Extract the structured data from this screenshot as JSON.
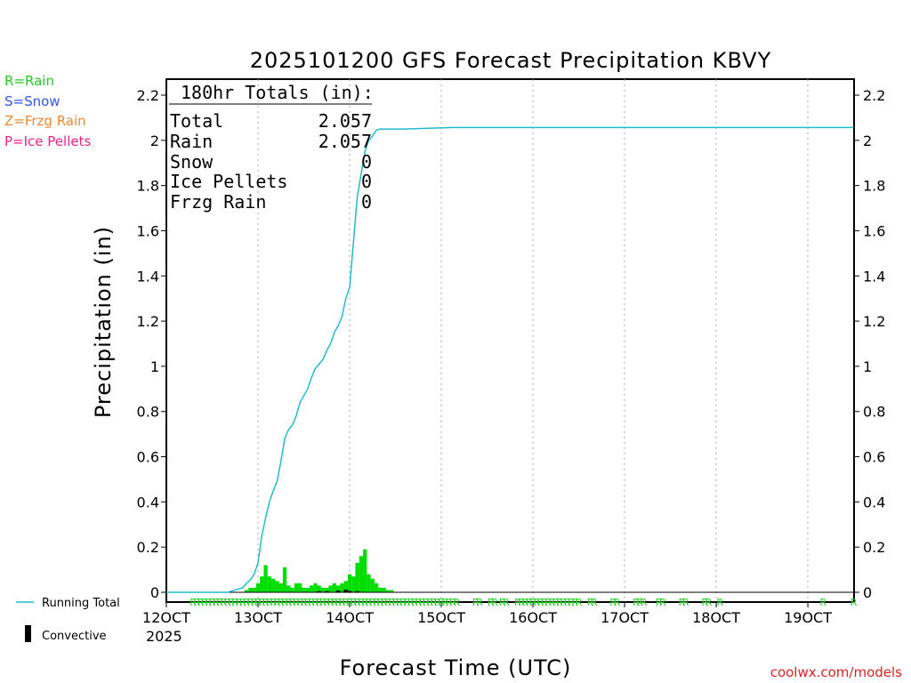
{
  "chart_data": {
    "type": "line",
    "title": "2025101200 GFS Forecast Precipitation KBVY",
    "xlabel": "Forecast Time (UTC)",
    "ylabel": "Precipitation (in)",
    "ylim": [
      0,
      2.25
    ],
    "yticks": [
      0,
      0.2,
      0.4,
      0.6,
      0.8,
      1,
      1.2,
      1.4,
      1.6,
      1.8,
      2,
      2.2
    ],
    "ytick_labels": [
      "0",
      "0.2",
      "0.4",
      "0.6",
      "0.8",
      "1",
      "1.2",
      "1.4",
      "1.6",
      "1.8",
      "2",
      "2.2"
    ],
    "xlim": [
      0,
      180
    ],
    "xticks": [
      0,
      24,
      48,
      72,
      96,
      120,
      144,
      168
    ],
    "xtick_labels": [
      "12OCT",
      "13OCT",
      "14OCT",
      "15OCT",
      "16OCT",
      "17OCT",
      "18OCT",
      "19OCT"
    ],
    "year_label": "2025",
    "legend_types": [
      {
        "label": "R=Rain",
        "color": "#22cc22"
      },
      {
        "label": "S=Snow",
        "color": "#3355ee"
      },
      {
        "label": "Z=Frzg Rain",
        "color": "#ee8833"
      },
      {
        "label": "P=Ice Pellets",
        "color": "#ee2288"
      }
    ],
    "legend_series": [
      {
        "label": "Running Total",
        "color": "#22bbcc",
        "kind": "line"
      },
      {
        "label": "Convective",
        "color": "#000000",
        "kind": "bar"
      }
    ],
    "totals": {
      "header": "180hr Totals (in):",
      "rows": [
        {
          "label": "Total",
          "value": "2.057"
        },
        {
          "label": "Rain",
          "value": "2.057"
        },
        {
          "label": "Snow",
          "value": "0"
        },
        {
          "label": "Ice Pellets",
          "value": "0"
        },
        {
          "label": "Frzg Rain",
          "value": "0"
        }
      ]
    },
    "series": [
      {
        "name": "Running Total",
        "color": "#22bbcc",
        "points": [
          [
            0,
            0
          ],
          [
            16,
            0
          ],
          [
            17,
            0.005
          ],
          [
            18,
            0.01
          ],
          [
            19,
            0.015
          ],
          [
            20,
            0.02
          ],
          [
            21,
            0.04
          ],
          [
            22,
            0.055
          ],
          [
            23,
            0.08
          ],
          [
            24,
            0.13
          ],
          [
            25,
            0.25
          ],
          [
            26,
            0.33
          ],
          [
            27,
            0.4
          ],
          [
            28,
            0.45
          ],
          [
            29,
            0.49
          ],
          [
            30,
            0.58
          ],
          [
            31,
            0.68
          ],
          [
            32,
            0.72
          ],
          [
            33,
            0.74
          ],
          [
            34,
            0.78
          ],
          [
            35,
            0.84
          ],
          [
            36,
            0.87
          ],
          [
            37,
            0.9
          ],
          [
            38,
            0.95
          ],
          [
            39,
            0.99
          ],
          [
            40,
            1.01
          ],
          [
            41,
            1.03
          ],
          [
            42,
            1.07
          ],
          [
            43,
            1.1
          ],
          [
            44,
            1.15
          ],
          [
            45,
            1.18
          ],
          [
            46,
            1.22
          ],
          [
            47,
            1.3
          ],
          [
            48,
            1.35
          ],
          [
            48.5,
            1.45
          ],
          [
            49,
            1.55
          ],
          [
            49.5,
            1.65
          ],
          [
            50,
            1.75
          ],
          [
            51,
            1.85
          ],
          [
            52,
            1.95
          ],
          [
            53,
            2.0
          ],
          [
            54,
            2.02
          ],
          [
            55,
            2.045
          ],
          [
            56,
            2.05
          ],
          [
            62,
            2.05
          ],
          [
            75,
            2.057
          ],
          [
            180,
            2.057
          ]
        ]
      }
    ],
    "bars": {
      "name": "Hourly Precip",
      "color": "#00dd00",
      "width_hours": 1,
      "x": [
        21,
        22,
        23,
        24,
        25,
        26,
        27,
        28,
        29,
        30,
        31,
        32,
        33,
        34,
        35,
        36,
        37,
        38,
        39,
        40,
        41,
        42,
        43,
        44,
        45,
        46,
        47,
        48,
        49,
        50,
        51,
        52,
        53,
        54,
        55,
        56,
        57,
        58,
        59
      ],
      "values": [
        0.01,
        0.02,
        0.02,
        0.04,
        0.07,
        0.12,
        0.07,
        0.06,
        0.05,
        0.04,
        0.11,
        0.03,
        0.02,
        0.04,
        0.04,
        0.02,
        0.02,
        0.03,
        0.04,
        0.03,
        0.02,
        0.02,
        0.03,
        0.04,
        0.03,
        0.04,
        0.05,
        0.08,
        0.07,
        0.13,
        0.16,
        0.19,
        0.08,
        0.06,
        0.04,
        0.02,
        0.02,
        0.01,
        0.01
      ]
    },
    "convective": {
      "x": [
        40,
        42,
        45,
        47,
        48,
        50
      ],
      "values": [
        0.005,
        0.005,
        0.008,
        0.012,
        0.006,
        0.005
      ]
    },
    "type_markers": {
      "label": "R",
      "color": "#22cc22",
      "hours": [
        7,
        8,
        9,
        10,
        11,
        12,
        13,
        14,
        15,
        16,
        17,
        18,
        19,
        20,
        21,
        22,
        23,
        24,
        25,
        26,
        27,
        28,
        29,
        30,
        31,
        32,
        33,
        34,
        35,
        36,
        37,
        38,
        39,
        40,
        41,
        42,
        43,
        44,
        45,
        46,
        47,
        48,
        49,
        50,
        51,
        52,
        53,
        54,
        55,
        56,
        57,
        58,
        59,
        60,
        61,
        62,
        63,
        64,
        65,
        66,
        67,
        68,
        69,
        70,
        71,
        72,
        73,
        74,
        75,
        76,
        81,
        82,
        85,
        86,
        88,
        89,
        92,
        93,
        94,
        95,
        96,
        97,
        98,
        99,
        100,
        101,
        102,
        103,
        104,
        105,
        106,
        107,
        108,
        111,
        112,
        117,
        118,
        123,
        124,
        125,
        129,
        130,
        135,
        136,
        141,
        142,
        145,
        172,
        180
      ]
    }
  },
  "footer": {
    "credit": "coolwx.com/models"
  }
}
